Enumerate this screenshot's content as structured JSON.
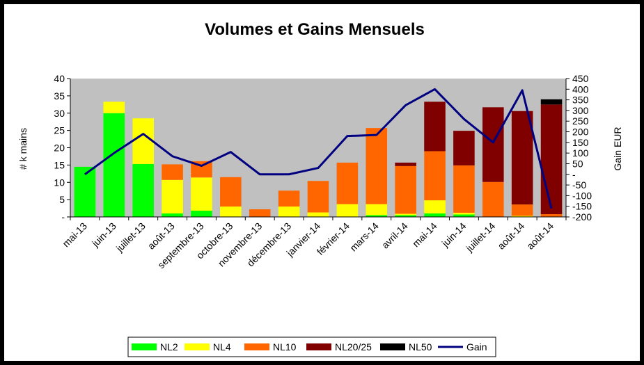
{
  "chart_data": {
    "type": "bar",
    "title": "Volumes et Gains Mensuels",
    "ylabel": "# k mains",
    "y2label": "Gain EUR",
    "ylim": [
      0,
      40
    ],
    "y2lim": [
      -200,
      450
    ],
    "grid": false,
    "legend_position": "bottom",
    "left_ticks": [
      "-",
      "5",
      "10",
      "15",
      "20",
      "25",
      "30",
      "35",
      "40"
    ],
    "right_ticks": [
      "-200",
      "-150",
      "-100",
      "-50",
      "-",
      "50",
      "100",
      "150",
      "200",
      "250",
      "300",
      "350",
      "400",
      "450"
    ],
    "categories": [
      "mai-13",
      "juin-13",
      "juillet-13",
      "août-13",
      "septembre-13",
      "octobre-13",
      "novembre-13",
      "décembre-13",
      "janvier-14",
      "février-14",
      "mars-14",
      "avril-14",
      "mai-14",
      "juin-14",
      "juillet-14",
      "août-14",
      "août-14"
    ],
    "series": [
      {
        "name": "NL2",
        "color": "#00ff00",
        "values": [
          14.5,
          30,
          15.3,
          1,
          1.8,
          0,
          0,
          0,
          0,
          0,
          0.5,
          0.5,
          1,
          0.7,
          0,
          0,
          0
        ]
      },
      {
        "name": "NL4",
        "color": "#ffff00",
        "values": [
          0,
          3.3,
          13.2,
          9.7,
          9.6,
          3,
          0,
          3,
          1.3,
          3.7,
          3.2,
          0.4,
          3.8,
          0.5,
          0,
          0.3,
          0
        ]
      },
      {
        "name": "NL10",
        "color": "#ff6600",
        "values": [
          0,
          0,
          0,
          4.5,
          4.7,
          8.5,
          2.2,
          4.6,
          9.1,
          12,
          22,
          13.8,
          14.2,
          13.7,
          10.1,
          3.3,
          0.8
        ]
      },
      {
        "name": "NL20/25",
        "color": "#800000",
        "values": [
          0,
          0,
          0,
          0,
          0,
          0,
          0,
          0,
          0,
          0,
          0,
          1,
          14.3,
          10,
          21.6,
          27,
          31.7
        ]
      },
      {
        "name": "NL50",
        "color": "#000000",
        "values": [
          0,
          0,
          0,
          0,
          0,
          0,
          0,
          0,
          0,
          0,
          0,
          0,
          0,
          0,
          0,
          0,
          1.5
        ]
      }
    ],
    "line_series": {
      "name": "Gain",
      "color": "#000080",
      "axis": "right",
      "values": [
        0,
        100,
        190,
        85,
        40,
        105,
        0,
        0,
        30,
        180,
        185,
        325,
        400,
        260,
        150,
        395,
        -160
      ]
    }
  }
}
